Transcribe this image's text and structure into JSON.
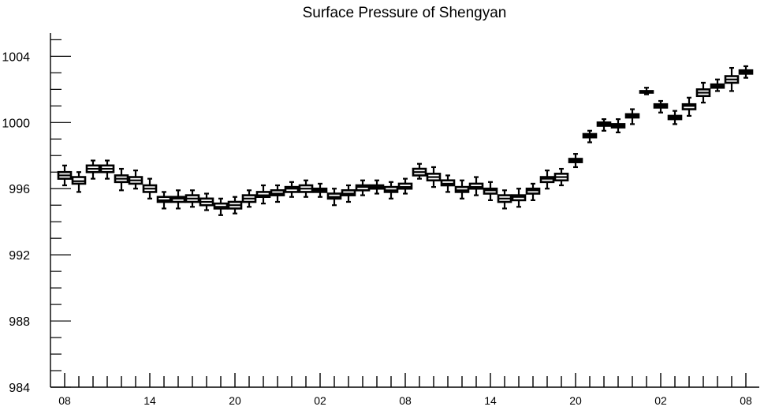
{
  "chart_data": {
    "type": "box",
    "title": "Surface Pressure of Shengyan",
    "xlabel": "",
    "ylabel": "",
    "ylim": [
      984,
      1005.4
    ],
    "yticks": [
      984,
      988,
      992,
      996,
      1000,
      1004
    ],
    "ytick_labels": [
      "984",
      "988",
      "992",
      "996",
      "1000",
      "1004"
    ],
    "xtick_labels": [
      "08",
      "14",
      "20",
      "02",
      "08",
      "14",
      "20",
      "02",
      "08"
    ],
    "xtick_positions": [
      0,
      6,
      12,
      18,
      24,
      30,
      36,
      42,
      48
    ],
    "x_count": 49,
    "grid": false,
    "colors": {
      "box": "#000000",
      "axis": "#000000",
      "background": "#ffffff"
    },
    "boxes": [
      {
        "x": 0,
        "q1": 996.6,
        "median": 996.8,
        "q3": 997.0,
        "min": 996.2,
        "max": 997.4
      },
      {
        "x": 1,
        "q1": 996.3,
        "median": 996.45,
        "q3": 996.7,
        "min": 995.8,
        "max": 997.0
      },
      {
        "x": 2,
        "q1": 997.0,
        "median": 997.2,
        "q3": 997.4,
        "min": 996.6,
        "max": 997.7
      },
      {
        "x": 3,
        "q1": 997.0,
        "median": 997.2,
        "q3": 997.4,
        "min": 996.6,
        "max": 997.7
      },
      {
        "x": 4,
        "q1": 996.4,
        "median": 996.6,
        "q3": 996.8,
        "min": 995.9,
        "max": 997.2
      },
      {
        "x": 5,
        "q1": 996.3,
        "median": 996.5,
        "q3": 996.7,
        "min": 996.0,
        "max": 997.1
      },
      {
        "x": 6,
        "q1": 995.8,
        "median": 996.0,
        "q3": 996.2,
        "min": 995.4,
        "max": 996.6
      },
      {
        "x": 7,
        "q1": 995.2,
        "median": 995.3,
        "q3": 995.5,
        "min": 994.8,
        "max": 995.8
      },
      {
        "x": 8,
        "q1": 995.2,
        "median": 995.4,
        "q3": 995.5,
        "min": 994.8,
        "max": 995.9
      },
      {
        "x": 9,
        "q1": 995.2,
        "median": 995.4,
        "q3": 995.6,
        "min": 994.9,
        "max": 995.9
      },
      {
        "x": 10,
        "q1": 995.0,
        "median": 995.2,
        "q3": 995.4,
        "min": 994.7,
        "max": 995.7
      },
      {
        "x": 11,
        "q1": 994.8,
        "median": 994.9,
        "q3": 995.1,
        "min": 994.4,
        "max": 995.4
      },
      {
        "x": 12,
        "q1": 994.8,
        "median": 995.0,
        "q3": 995.2,
        "min": 994.5,
        "max": 995.5
      },
      {
        "x": 13,
        "q1": 995.2,
        "median": 995.4,
        "q3": 995.6,
        "min": 994.9,
        "max": 995.9
      },
      {
        "x": 14,
        "q1": 995.5,
        "median": 995.6,
        "q3": 995.8,
        "min": 995.1,
        "max": 996.2
      },
      {
        "x": 15,
        "q1": 995.6,
        "median": 995.7,
        "q3": 995.9,
        "min": 995.2,
        "max": 996.2
      },
      {
        "x": 16,
        "q1": 995.8,
        "median": 996.0,
        "q3": 996.1,
        "min": 995.5,
        "max": 996.4
      },
      {
        "x": 17,
        "q1": 995.8,
        "median": 996.0,
        "q3": 996.2,
        "min": 995.5,
        "max": 996.5
      },
      {
        "x": 18,
        "q1": 995.8,
        "median": 995.9,
        "q3": 996.0,
        "min": 995.5,
        "max": 996.3
      },
      {
        "x": 19,
        "q1": 995.4,
        "median": 995.5,
        "q3": 995.7,
        "min": 995.0,
        "max": 996.0
      },
      {
        "x": 20,
        "q1": 995.6,
        "median": 995.7,
        "q3": 995.9,
        "min": 995.2,
        "max": 996.2
      },
      {
        "x": 21,
        "q1": 995.9,
        "median": 996.1,
        "q3": 996.2,
        "min": 995.6,
        "max": 996.5
      },
      {
        "x": 22,
        "q1": 996.0,
        "median": 996.1,
        "q3": 996.2,
        "min": 995.7,
        "max": 996.5
      },
      {
        "x": 23,
        "q1": 995.8,
        "median": 995.9,
        "q3": 996.1,
        "min": 995.4,
        "max": 996.4
      },
      {
        "x": 24,
        "q1": 996.0,
        "median": 996.1,
        "q3": 996.3,
        "min": 995.7,
        "max": 996.6
      },
      {
        "x": 25,
        "q1": 996.8,
        "median": 997.0,
        "q3": 997.2,
        "min": 996.6,
        "max": 997.5
      },
      {
        "x": 26,
        "q1": 996.5,
        "median": 996.7,
        "q3": 996.9,
        "min": 996.1,
        "max": 997.3
      },
      {
        "x": 27,
        "q1": 996.2,
        "median": 996.3,
        "q3": 996.5,
        "min": 995.8,
        "max": 996.8
      },
      {
        "x": 28,
        "q1": 995.8,
        "median": 995.9,
        "q3": 996.1,
        "min": 995.4,
        "max": 996.5
      },
      {
        "x": 29,
        "q1": 996.0,
        "median": 996.1,
        "q3": 996.3,
        "min": 995.6,
        "max": 996.7
      },
      {
        "x": 30,
        "q1": 995.7,
        "median": 995.9,
        "q3": 996.0,
        "min": 995.3,
        "max": 996.4
      },
      {
        "x": 31,
        "q1": 995.2,
        "median": 995.4,
        "q3": 995.6,
        "min": 994.8,
        "max": 995.9
      },
      {
        "x": 32,
        "q1": 995.3,
        "median": 995.5,
        "q3": 995.6,
        "min": 994.9,
        "max": 996.0
      },
      {
        "x": 33,
        "q1": 995.7,
        "median": 995.9,
        "q3": 996.0,
        "min": 995.3,
        "max": 996.3
      },
      {
        "x": 34,
        "q1": 996.4,
        "median": 996.6,
        "q3": 996.7,
        "min": 996.0,
        "max": 997.1
      },
      {
        "x": 35,
        "q1": 996.5,
        "median": 996.7,
        "q3": 996.9,
        "min": 996.2,
        "max": 997.2
      },
      {
        "x": 36,
        "q1": 997.6,
        "median": 997.7,
        "q3": 997.8,
        "min": 997.3,
        "max": 998.1
      },
      {
        "x": 37,
        "q1": 999.1,
        "median": 999.2,
        "q3": 999.3,
        "min": 998.8,
        "max": 999.5
      },
      {
        "x": 38,
        "q1": 999.8,
        "median": 999.9,
        "q3": 1000.0,
        "min": 999.5,
        "max": 1000.2
      },
      {
        "x": 39,
        "q1": 999.7,
        "median": 999.8,
        "q3": 999.9,
        "min": 999.4,
        "max": 1000.2
      },
      {
        "x": 40,
        "q1": 1000.3,
        "median": 1000.4,
        "q3": 1000.5,
        "min": 999.9,
        "max": 1000.8
      },
      {
        "x": 41,
        "q1": 1001.8,
        "median": 1001.85,
        "q3": 1001.9,
        "min": 1001.7,
        "max": 1002.1
      },
      {
        "x": 42,
        "q1": 1000.9,
        "median": 1001.0,
        "q3": 1001.1,
        "min": 1000.6,
        "max": 1001.3
      },
      {
        "x": 43,
        "q1": 1000.2,
        "median": 1000.3,
        "q3": 1000.4,
        "min": 999.9,
        "max": 1000.7
      },
      {
        "x": 44,
        "q1": 1000.8,
        "median": 1001.0,
        "q3": 1001.1,
        "min": 1000.4,
        "max": 1001.5
      },
      {
        "x": 45,
        "q1": 1001.6,
        "median": 1001.8,
        "q3": 1002.0,
        "min": 1001.2,
        "max": 1002.4
      },
      {
        "x": 46,
        "q1": 1002.1,
        "median": 1002.2,
        "q3": 1002.3,
        "min": 1001.9,
        "max": 1002.6
      },
      {
        "x": 47,
        "q1": 1002.4,
        "median": 1002.6,
        "q3": 1002.8,
        "min": 1001.9,
        "max": 1003.3
      },
      {
        "x": 48,
        "q1": 1002.95,
        "median": 1003.05,
        "q3": 1003.15,
        "min": 1002.7,
        "max": 1003.4
      }
    ]
  }
}
